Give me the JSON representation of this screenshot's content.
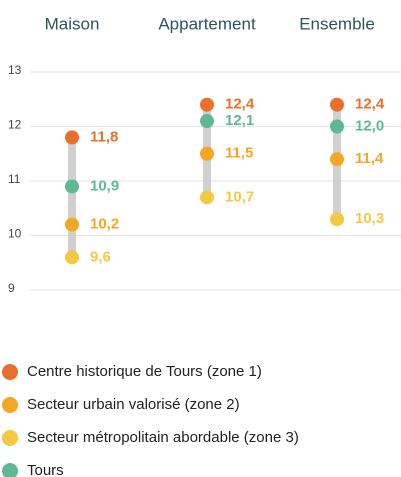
{
  "chart_data": {
    "type": "dot-range",
    "categories": [
      "Maison",
      "Appartement",
      "Ensemble"
    ],
    "series": [
      {
        "name": "Centre historique de Tours (zone 1)",
        "color": "#e8702a",
        "values": [
          11.8,
          12.4,
          12.4
        ],
        "value_labels": [
          "11,8",
          "12,4",
          "12,4"
        ]
      },
      {
        "name": "Secteur urbain valorisé (zone 2)",
        "color": "#f5a623",
        "values": [
          10.2,
          11.5,
          11.4
        ],
        "value_labels": [
          "10,2",
          "11,5",
          "11,4"
        ]
      },
      {
        "name": "Secteur métropolitain abordable (zone 3)",
        "color": "#f5c842",
        "values": [
          9.6,
          10.7,
          10.3
        ],
        "value_labels": [
          "9,6",
          "10,7",
          "10,3"
        ]
      },
      {
        "name": "Tours",
        "color": "#5fb894",
        "values": [
          10.9,
          12.1,
          12.0
        ],
        "value_labels": [
          "10,9",
          "12,1",
          "12,0"
        ]
      }
    ],
    "ylim": [
      9,
      13
    ],
    "yticks": [
      9,
      10,
      11,
      12,
      13
    ],
    "grid": true
  }
}
